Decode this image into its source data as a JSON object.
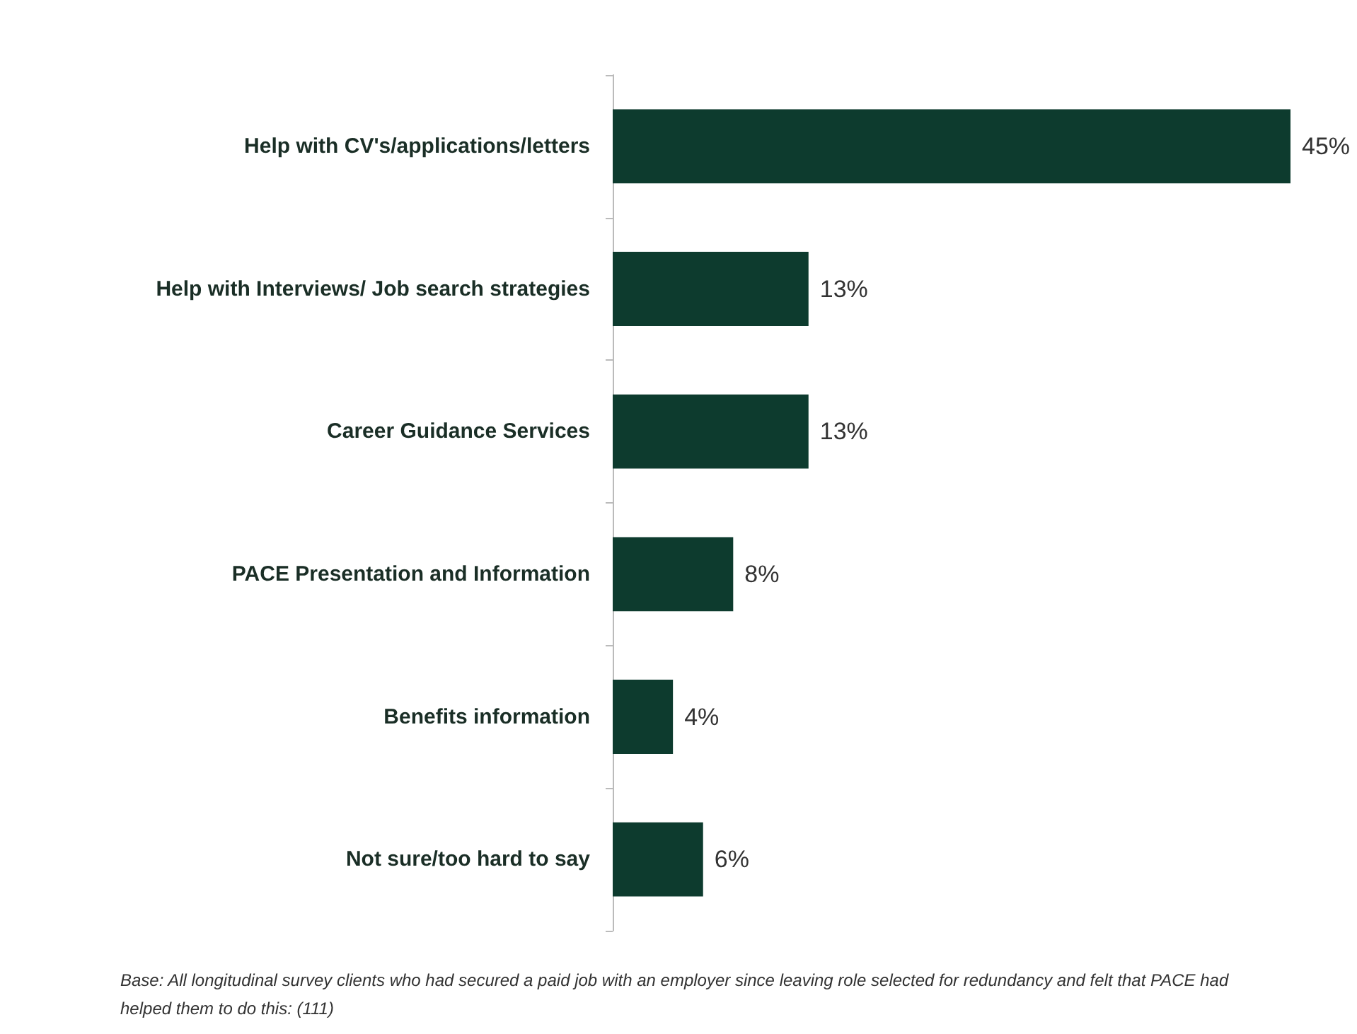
{
  "chart_data": {
    "type": "bar",
    "orientation": "horizontal",
    "categories": [
      "Help with CV's/applications/letters",
      "Help with Interviews/ Job search strategies",
      "Career Guidance Services",
      "PACE Presentation and Information",
      "Benefits information",
      "Not sure/too hard to say"
    ],
    "values": [
      45,
      13,
      13,
      8,
      4,
      6
    ],
    "value_labels": [
      "45%",
      "13%",
      "13%",
      "8%",
      "4%",
      "6%"
    ],
    "color": "#0d3b2e",
    "annotations": [
      "Base: All longitudinal survey clients who had secured a paid job with an employer since leaving role selected for redundancy and felt that PACE had helped them to do this: (111)"
    ]
  }
}
